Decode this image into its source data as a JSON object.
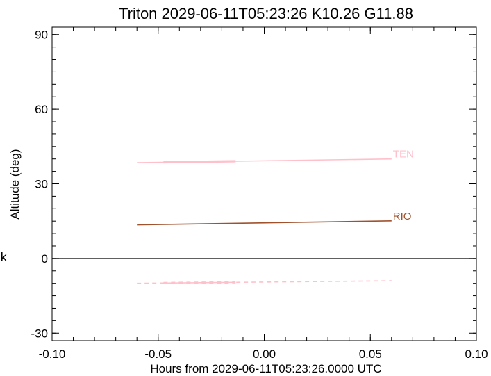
{
  "chart_data": {
    "type": "line",
    "title": "Triton 2029-06-11T05:23:26  K10.26  G11.88",
    "xlabel": "Hours from 2029-06-11T05:23:26.0000 UTC",
    "ylabel": "Altitude (deg)",
    "side_label": "k",
    "xlim": [
      -0.1,
      0.1
    ],
    "ylim": [
      -33,
      93
    ],
    "x_ticks": [
      -0.1,
      -0.05,
      0.0,
      0.05,
      0.1
    ],
    "x_tick_labels": [
      "-0.10",
      "-0.05",
      "0.00",
      "0.05",
      "0.10"
    ],
    "y_ticks": [
      -30,
      0,
      30,
      60,
      90
    ],
    "y_tick_labels": [
      "-30",
      "0",
      "30",
      "60",
      "90"
    ],
    "zero_line": 0,
    "grid": false,
    "series": [
      {
        "name": "TEN",
        "color": "#ffc0cb",
        "style": "solid",
        "x": [
          -0.06,
          0.06
        ],
        "y": [
          38.5,
          40.0
        ],
        "highlight_x": [
          -0.0475,
          -0.0135
        ]
      },
      {
        "name": "RIO",
        "color": "#a0522d",
        "style": "solid",
        "x": [
          -0.06,
          0.06
        ],
        "y": [
          13.5,
          15.1
        ]
      },
      {
        "name": "",
        "color": "#ffc0cb",
        "style": "dashed",
        "x": [
          -0.06,
          0.06
        ],
        "y": [
          -10.0,
          -9.0
        ],
        "highlight_x": [
          -0.0475,
          -0.0135
        ]
      }
    ]
  }
}
